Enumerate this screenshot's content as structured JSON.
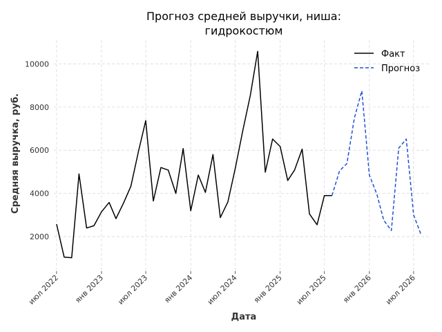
{
  "chart_data": {
    "type": "line",
    "title": [
      "Прогноз средней выручки, ниша:",
      "гидрокостюм"
    ],
    "xlabel": "Дата",
    "ylabel": "Средняя выручка, руб.",
    "x_ticks": [
      "июл 2022",
      "янв 2023",
      "июл 2023",
      "янв 2024",
      "июл 2024",
      "янв 2025",
      "июл 2025",
      "янв 2026",
      "июл 2026"
    ],
    "y_ticks": [
      2000,
      4000,
      6000,
      8000,
      10000
    ],
    "x_range": [
      "2022-06-20",
      "2026-09-10"
    ],
    "ylim": [
      400,
      11100
    ],
    "grid": true,
    "legend_position": "top-right",
    "series": [
      {
        "name": "Факт",
        "color": "#000000",
        "style": "solid",
        "points": [
          {
            "x": "2022-07-01",
            "y": 2580
          },
          {
            "x": "2022-08-01",
            "y": 1050
          },
          {
            "x": "2022-09-01",
            "y": 1020
          },
          {
            "x": "2022-10-01",
            "y": 4900
          },
          {
            "x": "2022-11-01",
            "y": 2400
          },
          {
            "x": "2022-12-01",
            "y": 2500
          },
          {
            "x": "2023-01-01",
            "y": 3150
          },
          {
            "x": "2023-02-01",
            "y": 3580
          },
          {
            "x": "2023-03-01",
            "y": 2830
          },
          {
            "x": "2023-04-01",
            "y": 3550
          },
          {
            "x": "2023-05-01",
            "y": 4330
          },
          {
            "x": "2023-06-01",
            "y": 5930
          },
          {
            "x": "2023-07-01",
            "y": 7370
          },
          {
            "x": "2023-08-01",
            "y": 3650
          },
          {
            "x": "2023-09-01",
            "y": 5200
          },
          {
            "x": "2023-10-01",
            "y": 5080
          },
          {
            "x": "2023-11-01",
            "y": 4000
          },
          {
            "x": "2023-12-01",
            "y": 6080
          },
          {
            "x": "2024-01-01",
            "y": 3200
          },
          {
            "x": "2024-02-01",
            "y": 4850
          },
          {
            "x": "2024-03-01",
            "y": 4050
          },
          {
            "x": "2024-04-01",
            "y": 5800
          },
          {
            "x": "2024-05-01",
            "y": 2880
          },
          {
            "x": "2024-06-01",
            "y": 3600
          },
          {
            "x": "2024-07-01",
            "y": 5150
          },
          {
            "x": "2024-08-01",
            "y": 6900
          },
          {
            "x": "2024-09-01",
            "y": 8550
          },
          {
            "x": "2024-10-01",
            "y": 10580
          },
          {
            "x": "2024-11-01",
            "y": 4980
          },
          {
            "x": "2024-12-01",
            "y": 6520
          },
          {
            "x": "2025-01-01",
            "y": 6170
          },
          {
            "x": "2025-02-01",
            "y": 4600
          },
          {
            "x": "2025-03-01",
            "y": 5080
          },
          {
            "x": "2025-04-01",
            "y": 6050
          },
          {
            "x": "2025-05-01",
            "y": 3050
          },
          {
            "x": "2025-06-01",
            "y": 2550
          },
          {
            "x": "2025-07-01",
            "y": 3900
          },
          {
            "x": "2025-08-01",
            "y": 3900
          }
        ]
      },
      {
        "name": "Прогноз",
        "color": "#1f4fd6",
        "style": "dashed",
        "points": [
          {
            "x": "2025-08-01",
            "y": 3900
          },
          {
            "x": "2025-09-01",
            "y": 5050
          },
          {
            "x": "2025-10-01",
            "y": 5380
          },
          {
            "x": "2025-11-01",
            "y": 7500
          },
          {
            "x": "2025-12-01",
            "y": 8750
          },
          {
            "x": "2026-01-01",
            "y": 4850
          },
          {
            "x": "2026-02-01",
            "y": 3950
          },
          {
            "x": "2026-03-01",
            "y": 2750
          },
          {
            "x": "2026-04-01",
            "y": 2280
          },
          {
            "x": "2026-05-01",
            "y": 6100
          },
          {
            "x": "2026-06-01",
            "y": 6520
          },
          {
            "x": "2026-07-01",
            "y": 3000
          },
          {
            "x": "2026-08-01",
            "y": 2080
          }
        ]
      }
    ]
  }
}
